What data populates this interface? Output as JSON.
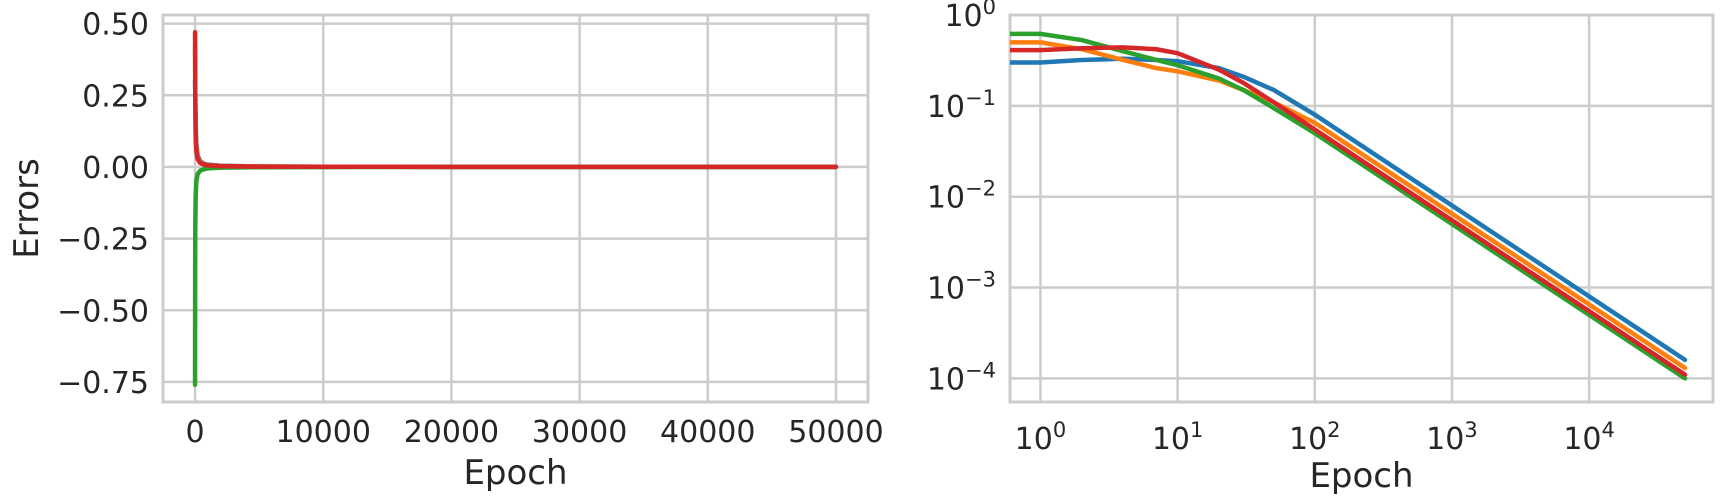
{
  "chart_data": [
    {
      "type": "line",
      "xlabel": "Epoch",
      "ylabel": "Errors",
      "xlim": [
        -2500,
        52500
      ],
      "ylim": [
        -0.82,
        0.53
      ],
      "xscale": "linear",
      "yscale": "linear",
      "grid": true,
      "x_ticks": [
        0,
        10000,
        20000,
        30000,
        40000,
        50000
      ],
      "x_tick_labels": [
        "0",
        "10000",
        "20000",
        "30000",
        "40000",
        "50000"
      ],
      "y_ticks": [
        0.5,
        0.25,
        0.0,
        -0.25,
        -0.5,
        -0.75
      ],
      "y_tick_labels": [
        "0.50",
        "0.25",
        "0.00",
        "−0.25",
        "−0.50",
        "−0.75"
      ],
      "series": [
        {
          "color": "#1f77b4",
          "x": [
            0,
            20,
            50,
            100,
            200,
            400,
            700,
            1000,
            2000,
            5000,
            10000,
            20000,
            50000
          ],
          "y": [
            0.3,
            0.25,
            0.15,
            0.08,
            0.04,
            0.02,
            0.011,
            0.008,
            0.004,
            0.0016,
            0.0008,
            0.0004,
            0.00016
          ]
        },
        {
          "color": "#ff7f0e",
          "x": [
            0,
            20,
            50,
            100,
            200,
            400,
            700,
            1000,
            2000,
            5000,
            10000,
            20000,
            50000
          ],
          "y": [
            0.42,
            0.22,
            0.12,
            0.065,
            0.033,
            0.017,
            0.009,
            0.0065,
            0.0032,
            0.0013,
            0.00065,
            0.00033,
            0.00013
          ]
        },
        {
          "color": "#2ca02c",
          "x": [
            0,
            5,
            10,
            20,
            50,
            100,
            200,
            400,
            700,
            1000,
            2000,
            5000,
            10000,
            20000,
            50000
          ],
          "y": [
            -0.76,
            -0.55,
            -0.35,
            -0.2,
            -0.1,
            -0.05,
            -0.025,
            -0.013,
            -0.008,
            -0.005,
            -0.0025,
            -0.001,
            -0.0005,
            -0.00025,
            -0.0001
          ]
        },
        {
          "color": "#d62728",
          "x": [
            0,
            3,
            10,
            20,
            50,
            100,
            200,
            400,
            700,
            1000,
            2000,
            5000,
            10000,
            20000,
            50000
          ],
          "y": [
            0.47,
            0.45,
            0.38,
            0.22,
            0.1,
            0.055,
            0.028,
            0.014,
            0.008,
            0.0055,
            0.0028,
            0.0011,
            0.00055,
            0.00028,
            0.00011
          ]
        }
      ]
    },
    {
      "type": "line",
      "xlabel": "Epoch",
      "ylabel": "",
      "xscale": "log",
      "yscale": "log",
      "xlim": [
        0.6,
        80000
      ],
      "ylim": [
        5.5e-05,
        1.0
      ],
      "grid": true,
      "x_ticks": [
        1,
        10,
        100,
        1000,
        10000
      ],
      "x_tick_labels": [
        {
          "base": "10",
          "exp": "0"
        },
        {
          "base": "10",
          "exp": "1"
        },
        {
          "base": "10",
          "exp": "2"
        },
        {
          "base": "10",
          "exp": "3"
        },
        {
          "base": "10",
          "exp": "4"
        }
      ],
      "y_ticks": [
        1,
        0.1,
        0.01,
        0.001,
        0.0001
      ],
      "y_tick_labels": [
        {
          "base": "10",
          "exp": "0"
        },
        {
          "base": "10",
          "exp": "−1"
        },
        {
          "base": "10",
          "exp": "−2"
        },
        {
          "base": "10",
          "exp": "−3"
        },
        {
          "base": "10",
          "exp": "−4"
        }
      ],
      "series": [
        {
          "color": "#1f77b4",
          "x": [
            0.6,
            1,
            2,
            4,
            7,
            10,
            20,
            30,
            50,
            100,
            1000,
            10000,
            50000
          ],
          "y": [
            0.3,
            0.3,
            0.32,
            0.33,
            0.32,
            0.31,
            0.26,
            0.21,
            0.15,
            0.08,
            0.008,
            0.0008,
            0.00016
          ]
        },
        {
          "color": "#ff7f0e",
          "x": [
            0.6,
            1,
            2,
            4,
            7,
            10,
            20,
            30,
            50,
            100,
            1000,
            10000,
            50000
          ],
          "y": [
            0.5,
            0.5,
            0.42,
            0.32,
            0.26,
            0.24,
            0.19,
            0.15,
            0.11,
            0.065,
            0.0065,
            0.00065,
            0.00013
          ]
        },
        {
          "color": "#2ca02c",
          "x": [
            0.6,
            1,
            2,
            4,
            7,
            10,
            20,
            30,
            50,
            100,
            1000,
            10000,
            50000
          ],
          "y": [
            0.62,
            0.62,
            0.53,
            0.4,
            0.32,
            0.28,
            0.2,
            0.15,
            0.095,
            0.05,
            0.005,
            0.0005,
            0.0001
          ]
        },
        {
          "color": "#d62728",
          "x": [
            0.6,
            1,
            2,
            4,
            7,
            10,
            20,
            30,
            50,
            100,
            1000,
            10000,
            50000
          ],
          "y": [
            0.41,
            0.41,
            0.43,
            0.44,
            0.42,
            0.38,
            0.25,
            0.18,
            0.11,
            0.055,
            0.0055,
            0.00055,
            0.00011
          ]
        }
      ]
    }
  ]
}
